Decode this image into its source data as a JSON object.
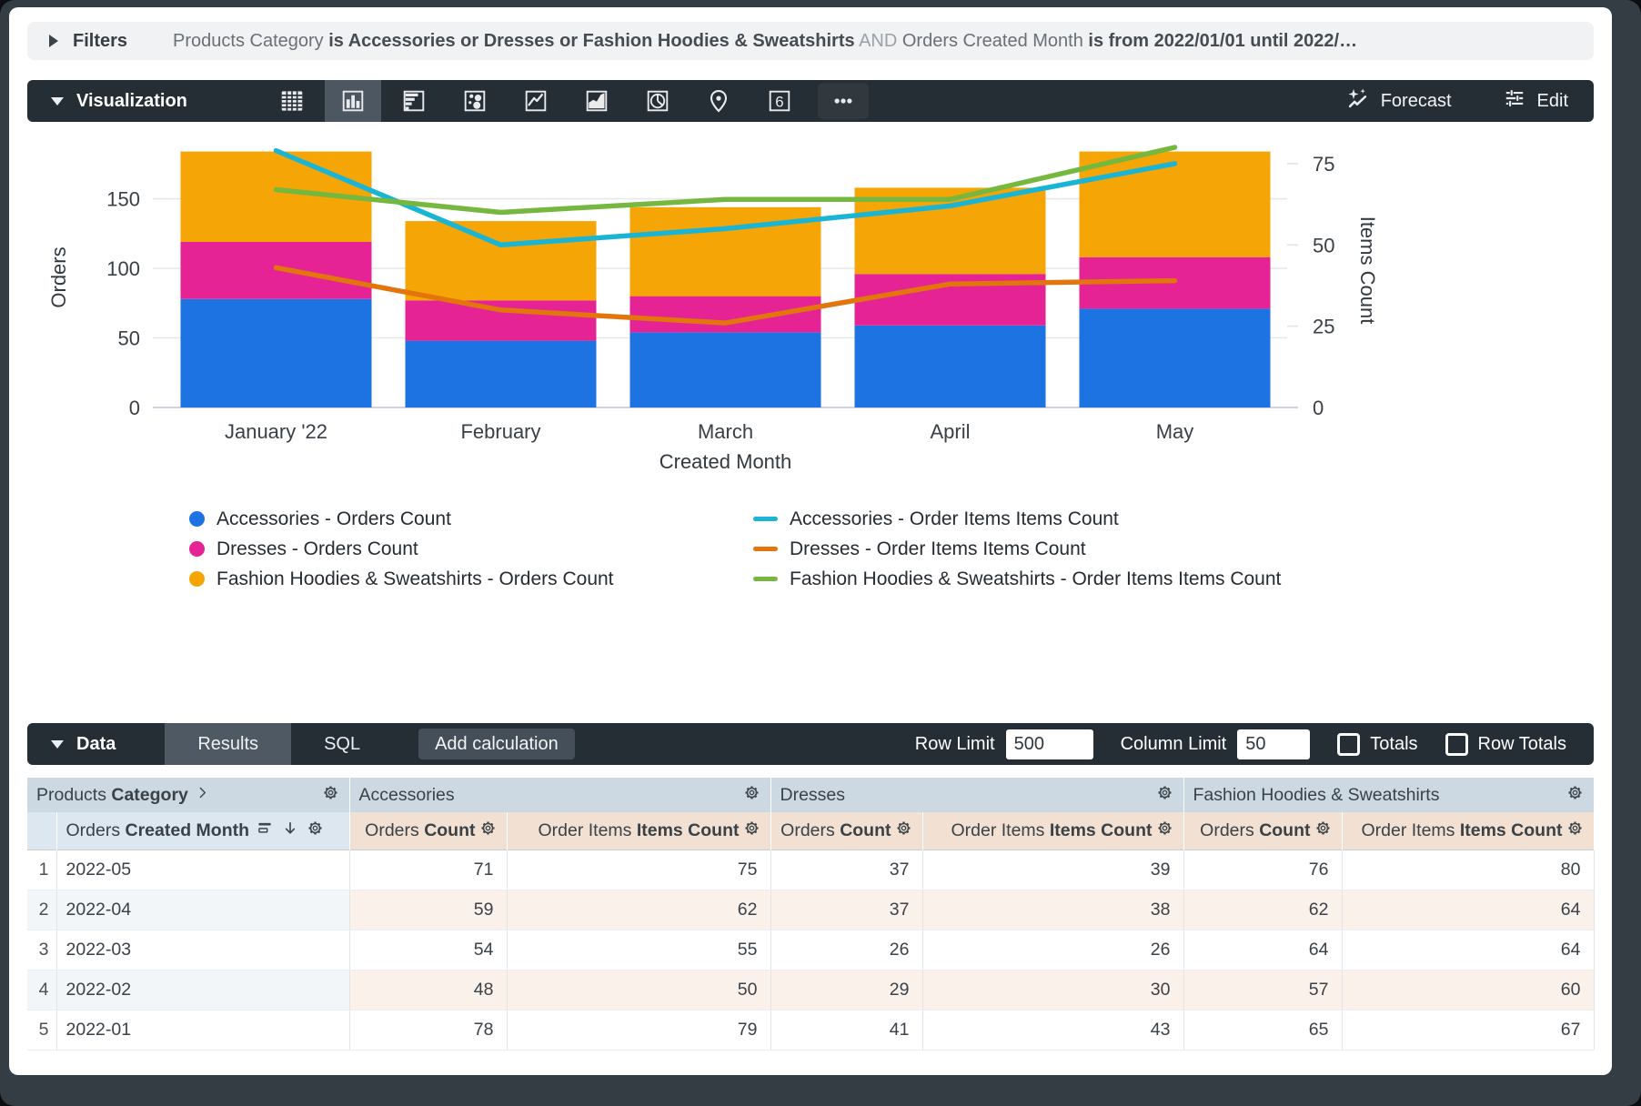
{
  "filters": {
    "label": "Filters",
    "segments": [
      {
        "text": "Products Category ",
        "style": "normal"
      },
      {
        "text": "is Accessories or Dresses or Fashion Hoodies & Sweatshirts",
        "style": "bold"
      },
      {
        "text": " AND ",
        "style": "dim"
      },
      {
        "text": "Orders Created Month ",
        "style": "normal"
      },
      {
        "text": "is from 2022/01/01 until 2022/…",
        "style": "bold"
      }
    ]
  },
  "viz": {
    "label": "Visualization",
    "forecast_label": "Forecast",
    "edit_label": "Edit",
    "icons": [
      {
        "name": "table"
      },
      {
        "name": "column",
        "selected": true
      },
      {
        "name": "bar"
      },
      {
        "name": "scatter"
      },
      {
        "name": "line"
      },
      {
        "name": "area"
      },
      {
        "name": "pie"
      },
      {
        "name": "map-pin"
      },
      {
        "name": "single-value",
        "glyph": "6"
      },
      {
        "name": "more"
      }
    ]
  },
  "chart_data": {
    "type": "combo",
    "title": "",
    "categories": [
      "January '22",
      "February",
      "March",
      "April",
      "May"
    ],
    "xlabel": "Created Month",
    "left_axis": {
      "label": "Orders",
      "ticks": [
        0,
        50,
        100,
        150
      ],
      "range": [
        0,
        187
      ]
    },
    "right_axis": {
      "label": "Items Count",
      "ticks": [
        0,
        25,
        50,
        75
      ],
      "range": [
        0,
        80
      ]
    },
    "bar_series": [
      {
        "name": "Accessories - Orders Count",
        "color": "#1E73E3",
        "values": [
          78,
          48,
          54,
          59,
          71
        ]
      },
      {
        "name": "Dresses - Orders Count",
        "color": "#E52394",
        "values": [
          41,
          29,
          26,
          37,
          37
        ]
      },
      {
        "name": "Fashion Hoodies & Sweatshirts - Orders Count",
        "color": "#F5A506",
        "values": [
          65,
          57,
          64,
          62,
          76
        ]
      }
    ],
    "line_series": [
      {
        "name": "Accessories - Order Items Items Count",
        "color": "#1AB5D4",
        "values": [
          79,
          50,
          55,
          62,
          75
        ]
      },
      {
        "name": "Dresses - Order Items Items Count",
        "color": "#E2750C",
        "values": [
          43,
          30,
          26,
          38,
          39
        ]
      },
      {
        "name": "Fashion Hoodies & Sweatshirts - Order Items Items Count",
        "color": "#76B83F",
        "values": [
          67,
          60,
          64,
          64,
          80
        ]
      }
    ],
    "legend_position": "bottom",
    "grid": true
  },
  "data_panel": {
    "label": "Data",
    "tabs": [
      {
        "label": "Results",
        "active": true
      },
      {
        "label": "SQL",
        "active": false
      }
    ],
    "add_calculation_label": "Add calculation",
    "row_limit": {
      "label": "Row Limit",
      "value": "500"
    },
    "column_limit": {
      "label": "Column Limit",
      "value": "50"
    },
    "totals_label": "Totals",
    "row_totals_label": "Row Totals"
  },
  "table": {
    "row_header_group": {
      "prefix": "Products",
      "bold": "Category"
    },
    "row_subheader": {
      "prefix": "Orders",
      "bold": "Created Month"
    },
    "groups": [
      "Accessories",
      "Dresses",
      "Fashion Hoodies & Sweatshirts"
    ],
    "measure_headers": [
      {
        "prefix": "Orders",
        "bold": "Count"
      },
      {
        "prefix": "Order Items",
        "bold": "Items Count"
      }
    ],
    "rows": [
      {
        "n": "1",
        "month": "2022-05",
        "values": [
          "71",
          "75",
          "37",
          "39",
          "76",
          "80"
        ]
      },
      {
        "n": "2",
        "month": "2022-04",
        "values": [
          "59",
          "62",
          "37",
          "38",
          "62",
          "64"
        ]
      },
      {
        "n": "3",
        "month": "2022-03",
        "values": [
          "54",
          "55",
          "26",
          "26",
          "64",
          "64"
        ]
      },
      {
        "n": "4",
        "month": "2022-02",
        "values": [
          "48",
          "50",
          "29",
          "30",
          "57",
          "60"
        ]
      },
      {
        "n": "5",
        "month": "2022-01",
        "values": [
          "78",
          "79",
          "41",
          "43",
          "65",
          "67"
        ]
      }
    ]
  }
}
